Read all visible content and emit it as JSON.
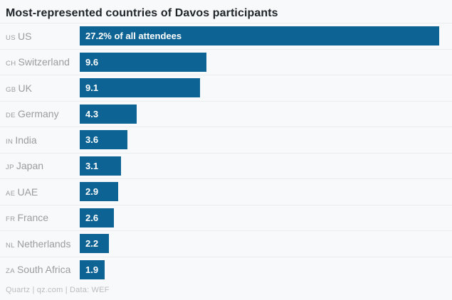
{
  "title": "Most-represented countries of Davos participants",
  "footer": "Quartz | qz.com | Data: WEF",
  "colors": {
    "bar": "#0d6394",
    "background": "#f8f9fa",
    "title_text": "#1f2429",
    "label_text": "#9a9da0",
    "bar_text": "#ffffff",
    "separator": "#ebecec",
    "footer_text": "#babdc0"
  },
  "chart_data": {
    "type": "bar",
    "orientation": "horizontal",
    "title": "Most-represented countries of Davos participants",
    "xlabel": "",
    "ylabel": "",
    "xlim": [
      0,
      27.2
    ],
    "max_value": 27.2,
    "grid": false,
    "legend": false,
    "value_unit": "% of all attendees",
    "source": "Quartz | qz.com | Data: WEF",
    "categories": [
      "US",
      "Switzerland",
      "UK",
      "Germany",
      "India",
      "Japan",
      "UAE",
      "France",
      "Netherlands",
      "South Africa"
    ],
    "values": [
      27.2,
      9.6,
      9.1,
      4.3,
      3.6,
      3.1,
      2.9,
      2.6,
      2.2,
      1.9
    ],
    "rows": [
      {
        "code": "US",
        "country": "US",
        "value": 27.2,
        "label": "27.2% of all attendees"
      },
      {
        "code": "CH",
        "country": "Switzerland",
        "value": 9.6,
        "label": "9.6"
      },
      {
        "code": "GB",
        "country": "UK",
        "value": 9.1,
        "label": "9.1"
      },
      {
        "code": "DE",
        "country": "Germany",
        "value": 4.3,
        "label": "4.3"
      },
      {
        "code": "IN",
        "country": "India",
        "value": 3.6,
        "label": "3.6"
      },
      {
        "code": "JP",
        "country": "Japan",
        "value": 3.1,
        "label": "3.1"
      },
      {
        "code": "AE",
        "country": "UAE",
        "value": 2.9,
        "label": "2.9"
      },
      {
        "code": "FR",
        "country": "France",
        "value": 2.6,
        "label": "2.6"
      },
      {
        "code": "NL",
        "country": "Netherlands",
        "value": 2.2,
        "label": "2.2"
      },
      {
        "code": "ZA",
        "country": "South Africa",
        "value": 1.9,
        "label": "1.9"
      }
    ]
  }
}
